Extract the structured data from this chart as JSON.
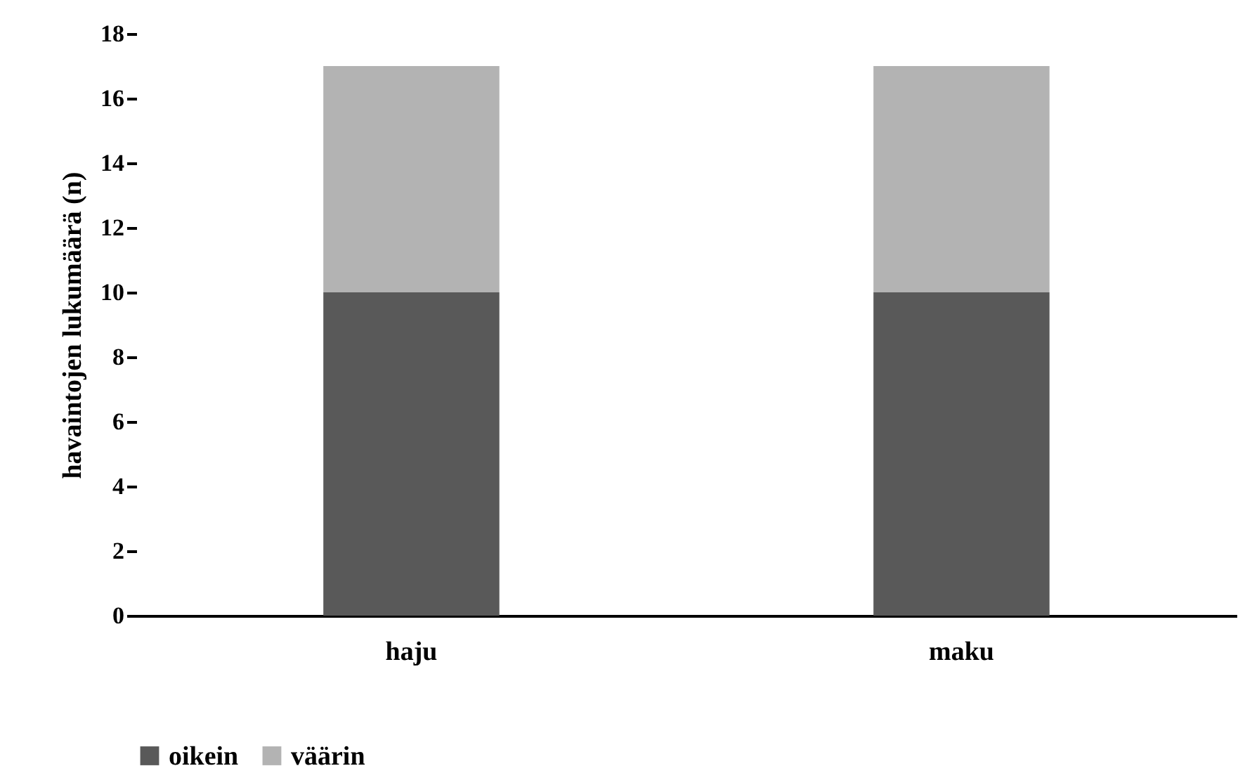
{
  "chart_data": {
    "type": "bar",
    "stacked": true,
    "ylabel": "havaintojen lukumäärä (n)",
    "categories": [
      "haju",
      "maku"
    ],
    "series": [
      {
        "name": "oikein",
        "color": "#595959",
        "values": [
          10,
          10
        ]
      },
      {
        "name": "väärin",
        "color": "#b3b3b3",
        "values": [
          7,
          7
        ]
      }
    ],
    "ylim": [
      0,
      18
    ],
    "yticks": [
      0,
      2,
      4,
      6,
      8,
      10,
      12,
      14,
      16,
      18
    ],
    "grid": false,
    "legend": "bottom"
  }
}
